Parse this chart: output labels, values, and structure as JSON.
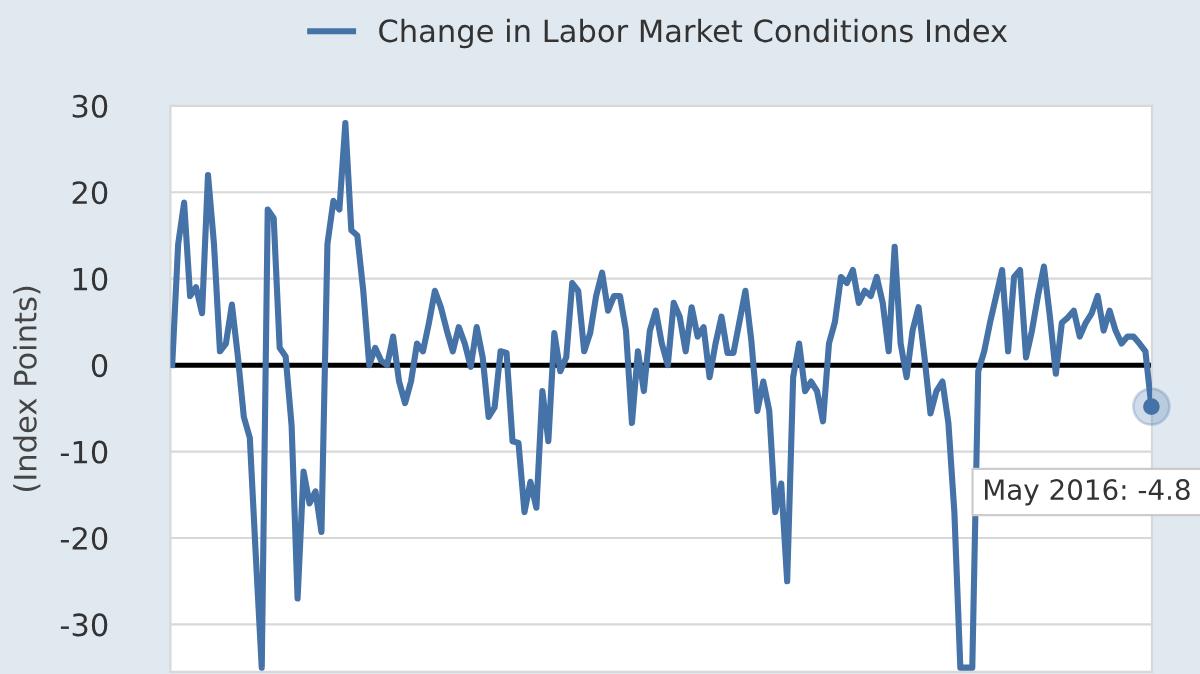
{
  "chart_data": {
    "type": "line",
    "ylabel": "(Index Points)",
    "legend": "top",
    "grid": "y",
    "marker": "none",
    "line_style": "solid",
    "tick_labels": "y",
    "ylim": [
      -35.5,
      30
    ],
    "yticks": [
      -30,
      -20,
      -10,
      0,
      10,
      20,
      30
    ],
    "ref_lines": [
      {
        "axis": "y",
        "value": 0,
        "color": "#000000"
      }
    ],
    "annotations": [
      "May 2016: -4.8"
    ],
    "categories": [
      null,
      null,
      null,
      null,
      null,
      null,
      null,
      null,
      null,
      null,
      null,
      null,
      null,
      null,
      null,
      null,
      null,
      null,
      null,
      null,
      null,
      null,
      null,
      null,
      null,
      null,
      null,
      null,
      null,
      null,
      null,
      null,
      null,
      null,
      null,
      null,
      null,
      null,
      null,
      null,
      null,
      null,
      null,
      null,
      null,
      null,
      null,
      null,
      null,
      null,
      null,
      null,
      null,
      null,
      null,
      null,
      null,
      null,
      null,
      null,
      null,
      null,
      null,
      null,
      null,
      null,
      null,
      null,
      null,
      null,
      null,
      null,
      null,
      null,
      null,
      null,
      null,
      null,
      null,
      null,
      null,
      null,
      null,
      null,
      null,
      null,
      null,
      null,
      null,
      null,
      null,
      null,
      null,
      null,
      null,
      null,
      null,
      null,
      null,
      null,
      null,
      null,
      null,
      null,
      null,
      null,
      null,
      null,
      null,
      null,
      null,
      null,
      null,
      null,
      null,
      null,
      null,
      null,
      null,
      null,
      null,
      null,
      null,
      null,
      null,
      null,
      null,
      null,
      null,
      null,
      null,
      null,
      null,
      null,
      null,
      null,
      null,
      null,
      null,
      null,
      null,
      null,
      null,
      null,
      null,
      null,
      null,
      null,
      null,
      null,
      null,
      null,
      null,
      null,
      null,
      null,
      null,
      null,
      null,
      null,
      null,
      null,
      null,
      null,
      null
    ],
    "series": [
      {
        "name": "Change in Labor Market Conditions Index",
        "color": "#4572a7",
        "values": [
          0,
          14,
          18.8,
          8,
          9,
          6,
          22,
          14,
          1.6,
          2.5,
          7,
          1,
          -6,
          -8.4,
          -22,
          -35,
          18,
          17,
          2,
          1,
          -7,
          -27,
          -12.3,
          -16,
          -14.6,
          -19.3,
          14,
          19,
          18,
          28,
          15.6,
          15,
          8.6,
          0,
          2,
          0.5,
          0,
          3.3,
          -1.9,
          -4.4,
          -1.9,
          2.5,
          1.6,
          4.9,
          8.6,
          6.7,
          4,
          1.6,
          4.4,
          2.5,
          -0.2,
          4.4,
          0.9,
          -6,
          -4.9,
          1.6,
          1.4,
          -8.8,
          -9,
          -17,
          -13.5,
          -16.5,
          -3,
          -8.8,
          3.7,
          -0.7,
          0.9,
          9.5,
          8.6,
          1.6,
          3.7,
          8,
          10.7,
          6.3,
          8,
          8,
          4,
          -6.7,
          1.6,
          -3,
          4,
          6.3,
          2.5,
          0,
          7.2,
          5.6,
          1.6,
          6.7,
          3.3,
          4.4,
          -1.4,
          2.5,
          5.6,
          1.4,
          1.4,
          5,
          8.6,
          2.8,
          -5.3,
          -1.9,
          -5.3,
          -17,
          -13.7,
          -25,
          -1.4,
          2.5,
          -3,
          -1.9,
          -3,
          -6.5,
          2.5,
          5,
          10.2,
          9.5,
          11,
          7.2,
          8.6,
          8,
          10.2,
          7.2,
          1.6,
          13.7,
          2.5,
          -1.4,
          4,
          6.7,
          0.9,
          -5.6,
          -3,
          -1.9,
          -6.7,
          -17,
          -35,
          -35,
          -35,
          -0.7,
          1.6,
          5,
          8,
          11,
          1.6,
          10.2,
          11,
          0.9,
          4,
          8,
          11.4,
          5.6,
          -1,
          4.9,
          5.5,
          6.3,
          3.3,
          4.9,
          6,
          8,
          4,
          6.3,
          4,
          2.5,
          3.3,
          3.3,
          2.5,
          1.6,
          -4.8
        ]
      }
    ]
  }
}
